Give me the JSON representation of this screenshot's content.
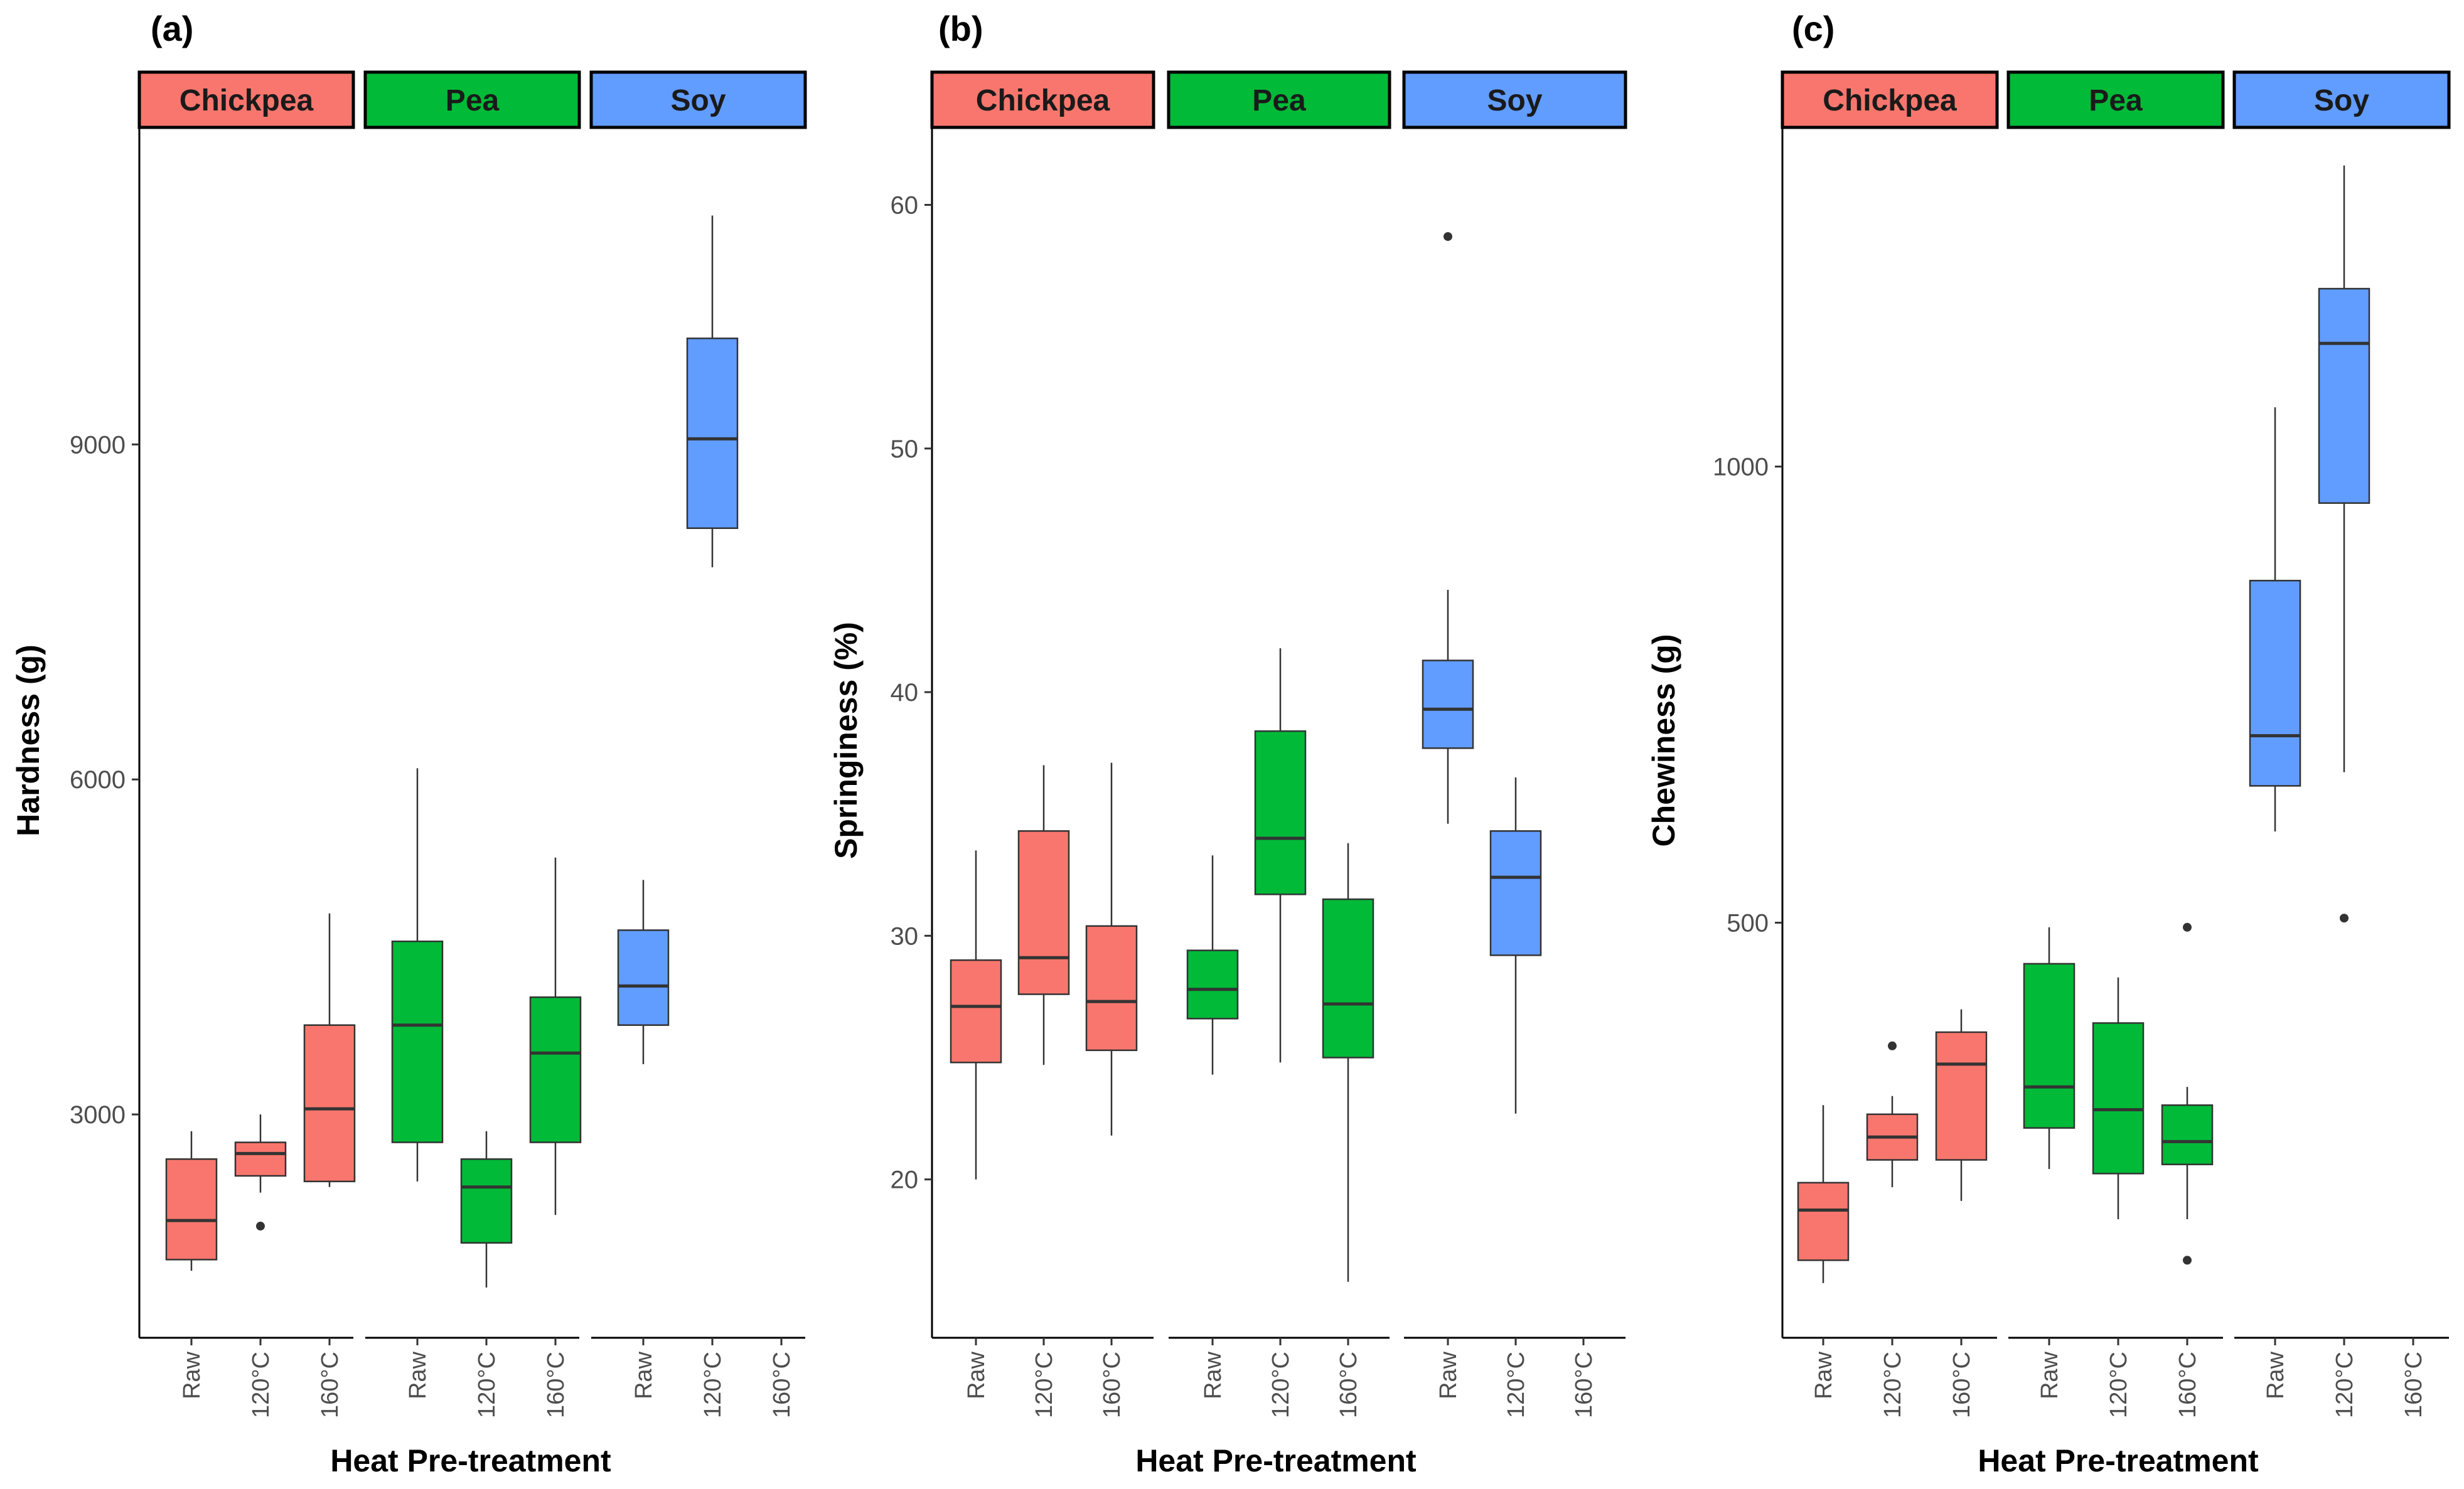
{
  "figure": {
    "x_axis_label": "Heat Pre-treatment",
    "groups": [
      "Chickpea",
      "Pea",
      "Soy"
    ],
    "treatments": [
      "Raw",
      "120°C",
      "160°C"
    ]
  },
  "colors": {
    "Chickpea": "#F8766D",
    "Pea": "#00BA38",
    "Soy": "#619CFF",
    "strip_text": "#1a1a1a",
    "box_line": "#333333"
  },
  "chart_data": [
    {
      "type": "boxplot",
      "panel_label": "(a)",
      "title": "",
      "xlabel": "Heat Pre-treatment",
      "ylabel": "Hardness (g)",
      "ylim": [
        1000,
        11800
      ],
      "yticks": [
        3000,
        6000,
        9000
      ],
      "ytick_labels": [
        "3000",
        "6000",
        "9000"
      ],
      "facets": [
        "Chickpea",
        "Pea",
        "Soy"
      ],
      "categories": [
        "Raw",
        "120°C",
        "160°C"
      ],
      "boxes": [
        {
          "group": "Chickpea",
          "treatment": "Raw",
          "whisker_low": 1600,
          "q1": 1700,
          "median": 2050,
          "q3": 2600,
          "whisker_high": 2850,
          "outliers": []
        },
        {
          "group": "Chickpea",
          "treatment": "120°C",
          "whisker_low": 2300,
          "q1": 2450,
          "median": 2650,
          "q3": 2750,
          "whisker_high": 3000,
          "outliers": [
            2000
          ]
        },
        {
          "group": "Chickpea",
          "treatment": "160°C",
          "whisker_low": 2350,
          "q1": 2400,
          "median": 3050,
          "q3": 3800,
          "whisker_high": 4800,
          "outliers": []
        },
        {
          "group": "Pea",
          "treatment": "Raw",
          "whisker_low": 2400,
          "q1": 2750,
          "median": 3800,
          "q3": 4550,
          "whisker_high": 6100,
          "outliers": []
        },
        {
          "group": "Pea",
          "treatment": "120°C",
          "whisker_low": 1450,
          "q1": 1850,
          "median": 2350,
          "q3": 2600,
          "whisker_high": 2850,
          "outliers": []
        },
        {
          "group": "Pea",
          "treatment": "160°C",
          "whisker_low": 2100,
          "q1": 2750,
          "median": 3550,
          "q3": 4050,
          "whisker_high": 5300,
          "outliers": []
        },
        {
          "group": "Soy",
          "treatment": "Raw",
          "whisker_low": 3450,
          "q1": 3800,
          "median": 4150,
          "q3": 4650,
          "whisker_high": 5100,
          "outliers": []
        },
        {
          "group": "Soy",
          "treatment": "120°C",
          "whisker_low": 7900,
          "q1": 8250,
          "median": 9050,
          "q3": 9950,
          "whisker_high": 11050,
          "outliers": []
        }
      ]
    },
    {
      "type": "boxplot",
      "panel_label": "(b)",
      "title": "",
      "xlabel": "Heat Pre-treatment",
      "ylabel": "Springiness (%)",
      "ylim": [
        13.5,
        63
      ],
      "yticks": [
        20,
        30,
        40,
        50,
        60
      ],
      "ytick_labels": [
        "20",
        "30",
        "40",
        "50",
        "60"
      ],
      "facets": [
        "Chickpea",
        "Pea",
        "Soy"
      ],
      "categories": [
        "Raw",
        "120°C",
        "160°C"
      ],
      "boxes": [
        {
          "group": "Chickpea",
          "treatment": "Raw",
          "whisker_low": 20.0,
          "q1": 24.8,
          "median": 27.1,
          "q3": 29.0,
          "whisker_high": 33.5,
          "outliers": []
        },
        {
          "group": "Chickpea",
          "treatment": "120°C",
          "whisker_low": 24.7,
          "q1": 27.6,
          "median": 29.1,
          "q3": 34.3,
          "whisker_high": 37.0,
          "outliers": []
        },
        {
          "group": "Chickpea",
          "treatment": "160°C",
          "whisker_low": 21.8,
          "q1": 25.3,
          "median": 27.3,
          "q3": 30.4,
          "whisker_high": 37.1,
          "outliers": []
        },
        {
          "group": "Pea",
          "treatment": "Raw",
          "whisker_low": 24.3,
          "q1": 26.6,
          "median": 27.8,
          "q3": 29.4,
          "whisker_high": 33.3,
          "outliers": []
        },
        {
          "group": "Pea",
          "treatment": "120°C",
          "whisker_low": 24.8,
          "q1": 31.7,
          "median": 34.0,
          "q3": 38.4,
          "whisker_high": 41.8,
          "outliers": []
        },
        {
          "group": "Pea",
          "treatment": "160°C",
          "whisker_low": 15.8,
          "q1": 25.0,
          "median": 27.2,
          "q3": 31.5,
          "whisker_high": 33.8,
          "outliers": []
        },
        {
          "group": "Soy",
          "treatment": "Raw",
          "whisker_low": 34.6,
          "q1": 37.7,
          "median": 39.3,
          "q3": 41.3,
          "whisker_high": 44.2,
          "outliers": [
            58.7
          ]
        },
        {
          "group": "Soy",
          "treatment": "120°C",
          "whisker_low": 22.7,
          "q1": 29.2,
          "median": 32.4,
          "q3": 34.3,
          "whisker_high": 36.5,
          "outliers": []
        }
      ]
    },
    {
      "type": "boxplot",
      "panel_label": "(c)",
      "title": "",
      "xlabel": "Heat Pre-treatment",
      "ylabel": "Chewiness (g)",
      "ylim": [
        45,
        1367
      ],
      "yticks": [
        500,
        1000
      ],
      "ytick_labels": [
        "500",
        "1000"
      ],
      "facets": [
        "Chickpea",
        "Pea",
        "Soy"
      ],
      "categories": [
        "Raw",
        "120°C",
        "160°C"
      ],
      "boxes": [
        {
          "group": "Chickpea",
          "treatment": "Raw",
          "whisker_low": 105,
          "q1": 130,
          "median": 185,
          "q3": 215,
          "whisker_high": 300,
          "outliers": []
        },
        {
          "group": "Chickpea",
          "treatment": "120°C",
          "whisker_low": 210,
          "q1": 240,
          "median": 265,
          "q3": 290,
          "whisker_high": 310,
          "outliers": [
            365
          ]
        },
        {
          "group": "Chickpea",
          "treatment": "160°C",
          "whisker_low": 195,
          "q1": 240,
          "median": 345,
          "q3": 380,
          "whisker_high": 405,
          "outliers": []
        },
        {
          "group": "Pea",
          "treatment": "Raw",
          "whisker_low": 230,
          "q1": 275,
          "median": 320,
          "q3": 455,
          "whisker_high": 495,
          "outliers": []
        },
        {
          "group": "Pea",
          "treatment": "120°C",
          "whisker_low": 175,
          "q1": 225,
          "median": 295,
          "q3": 390,
          "whisker_high": 440,
          "outliers": []
        },
        {
          "group": "Pea",
          "treatment": "160°C",
          "whisker_low": 175,
          "q1": 235,
          "median": 260,
          "q3": 300,
          "whisker_high": 320,
          "outliers": [
            495,
            130
          ]
        },
        {
          "group": "Soy",
          "treatment": "Raw",
          "whisker_low": 600,
          "q1": 650,
          "median": 705,
          "q3": 875,
          "whisker_high": 1065,
          "outliers": []
        },
        {
          "group": "Soy",
          "treatment": "120°C",
          "whisker_low": 665,
          "q1": 960,
          "median": 1135,
          "q3": 1195,
          "whisker_high": 1330,
          "outliers": [
            505
          ]
        }
      ]
    }
  ]
}
